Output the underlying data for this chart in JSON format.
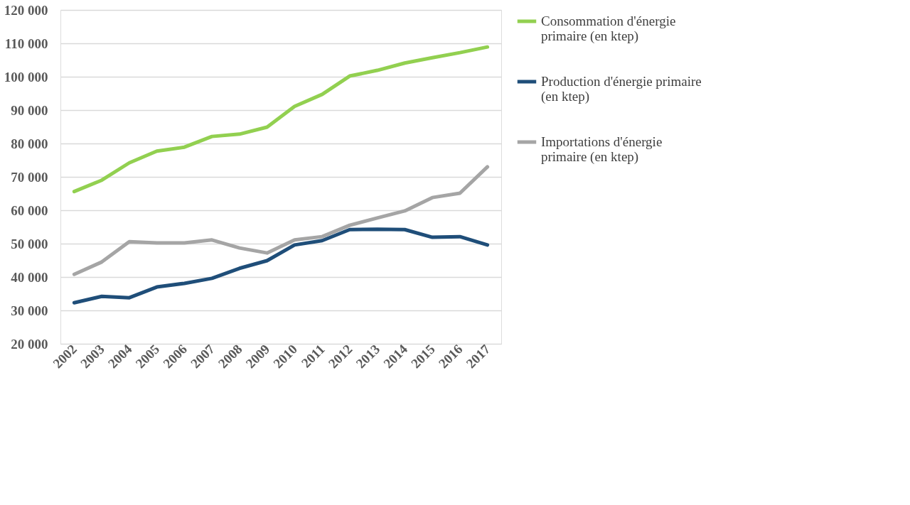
{
  "chart_data": {
    "type": "line",
    "categories": [
      "2002",
      "2003",
      "2004",
      "2005",
      "2006",
      "2007",
      "2008",
      "2009",
      "2010",
      "2011",
      "2012",
      "2013",
      "2014",
      "2015",
      "2016",
      "2017"
    ],
    "series": [
      {
        "name": "Consommation d'énergie primaire (en ktep)",
        "color": "#92d050",
        "values": [
          65600,
          69000,
          74200,
          77700,
          78900,
          82100,
          82800,
          84900,
          91100,
          94700,
          100200,
          101900,
          104100,
          105700,
          107200,
          108900
        ]
      },
      {
        "name": "Production d'énergie primaire (en ktep)",
        "color": "#1f4e79",
        "values": [
          32300,
          34200,
          33800,
          37000,
          38100,
          39600,
          42600,
          44900,
          49600,
          50900,
          54200,
          54300,
          54200,
          51900,
          52100,
          49600
        ]
      },
      {
        "name": "Importations d'énergie primaire (en ktep)",
        "color": "#a5a5a5",
        "values": [
          40800,
          44500,
          50600,
          50200,
          50200,
          51100,
          48700,
          47200,
          51100,
          52100,
          55500,
          57700,
          59800,
          63800,
          65100,
          73000
        ]
      }
    ],
    "ylim": [
      20000,
      120000
    ],
    "yticks": [
      {
        "value": 20000,
        "label": "20 000"
      },
      {
        "value": 30000,
        "label": "30 000"
      },
      {
        "value": 40000,
        "label": "40 000"
      },
      {
        "value": 50000,
        "label": "50 000"
      },
      {
        "value": 60000,
        "label": "60 000"
      },
      {
        "value": 70000,
        "label": "70 000"
      },
      {
        "value": 80000,
        "label": "80 000"
      },
      {
        "value": 90000,
        "label": "90 000"
      },
      {
        "value": 100000,
        "label": "100 000"
      },
      {
        "value": 110000,
        "label": "110 000"
      },
      {
        "value": 120000,
        "label": "120 000"
      }
    ],
    "grid": "y",
    "legend": "right",
    "marker": "none",
    "line_style": "solid"
  }
}
